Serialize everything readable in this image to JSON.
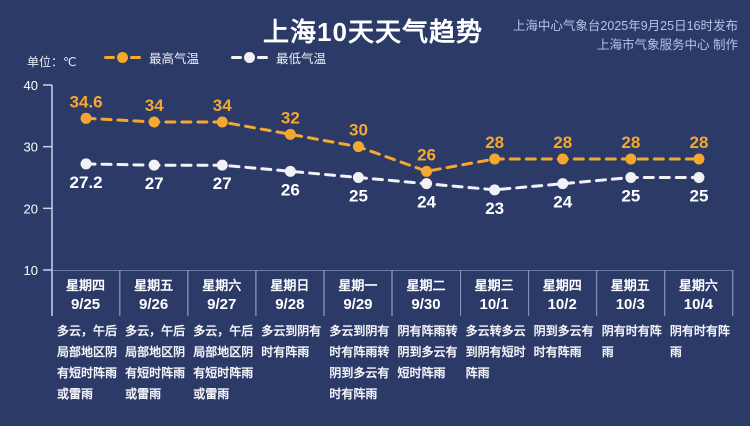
{
  "header": {
    "title": "上海10天天气趋势",
    "publisher_line1": "上海中心气象台2025年9月25日16时发布",
    "publisher_line2": "上海市气象服务中心 制作"
  },
  "unit_label": "单位：℃",
  "colors": {
    "background": "#2C3A68",
    "high_series": "#F5A82F",
    "low_series": "#F2F1F6",
    "axis_line": "#C9D2EA",
    "table_border": "#A0AFD7",
    "publisher_text": "#B7C3E6",
    "label_text": "#FFFFFF"
  },
  "chart_data": {
    "type": "line",
    "title": "上海10天天气趋势",
    "unit": "℃",
    "ylim": [
      10,
      40
    ],
    "y_ticks": [
      40,
      30,
      20,
      10
    ],
    "grid": false,
    "legend_position": "top-left",
    "line_style": "dashed",
    "x": [
      "9/25",
      "9/26",
      "9/27",
      "9/28",
      "9/29",
      "9/30",
      "10/1",
      "10/2",
      "10/3",
      "10/4"
    ],
    "series": [
      {
        "name": "最高气温",
        "color": "#F5A82F",
        "label_color": "#F5A82F",
        "values": [
          34.6,
          34,
          34,
          32,
          30,
          26,
          28,
          28,
          28,
          28
        ]
      },
      {
        "name": "最低气温",
        "color": "#F2F1F6",
        "label_color": "#FFFFFF",
        "values": [
          27.2,
          27,
          27,
          26,
          25,
          24,
          23,
          24,
          25,
          25
        ]
      }
    ],
    "days": [
      {
        "weekday": "星期四",
        "date": "9/25",
        "weather": "多云，午后局部地区阴有短时阵雨或雷雨"
      },
      {
        "weekday": "星期五",
        "date": "9/26",
        "weather": "多云，午后局部地区阴有短时阵雨或雷雨"
      },
      {
        "weekday": "星期六",
        "date": "9/27",
        "weather": "多云，午后局部地区阴有短时阵雨或雷雨"
      },
      {
        "weekday": "星期日",
        "date": "9/28",
        "weather": "多云到阴有时有阵雨"
      },
      {
        "weekday": "星期一",
        "date": "9/29",
        "weather": "多云到阴有时有阵雨转阴到多云有时有阵雨"
      },
      {
        "weekday": "星期二",
        "date": "9/30",
        "weather": "阴有阵雨转阴到多云有短时阵雨"
      },
      {
        "weekday": "星期三",
        "date": "10/1",
        "weather": "多云转多云到阴有短时阵雨"
      },
      {
        "weekday": "星期四",
        "date": "10/2",
        "weather": "阴到多云有时有阵雨"
      },
      {
        "weekday": "星期五",
        "date": "10/3",
        "weather": "阴有时有阵雨"
      },
      {
        "weekday": "星期六",
        "date": "10/4",
        "weather": "阴有时有阵雨"
      }
    ]
  }
}
